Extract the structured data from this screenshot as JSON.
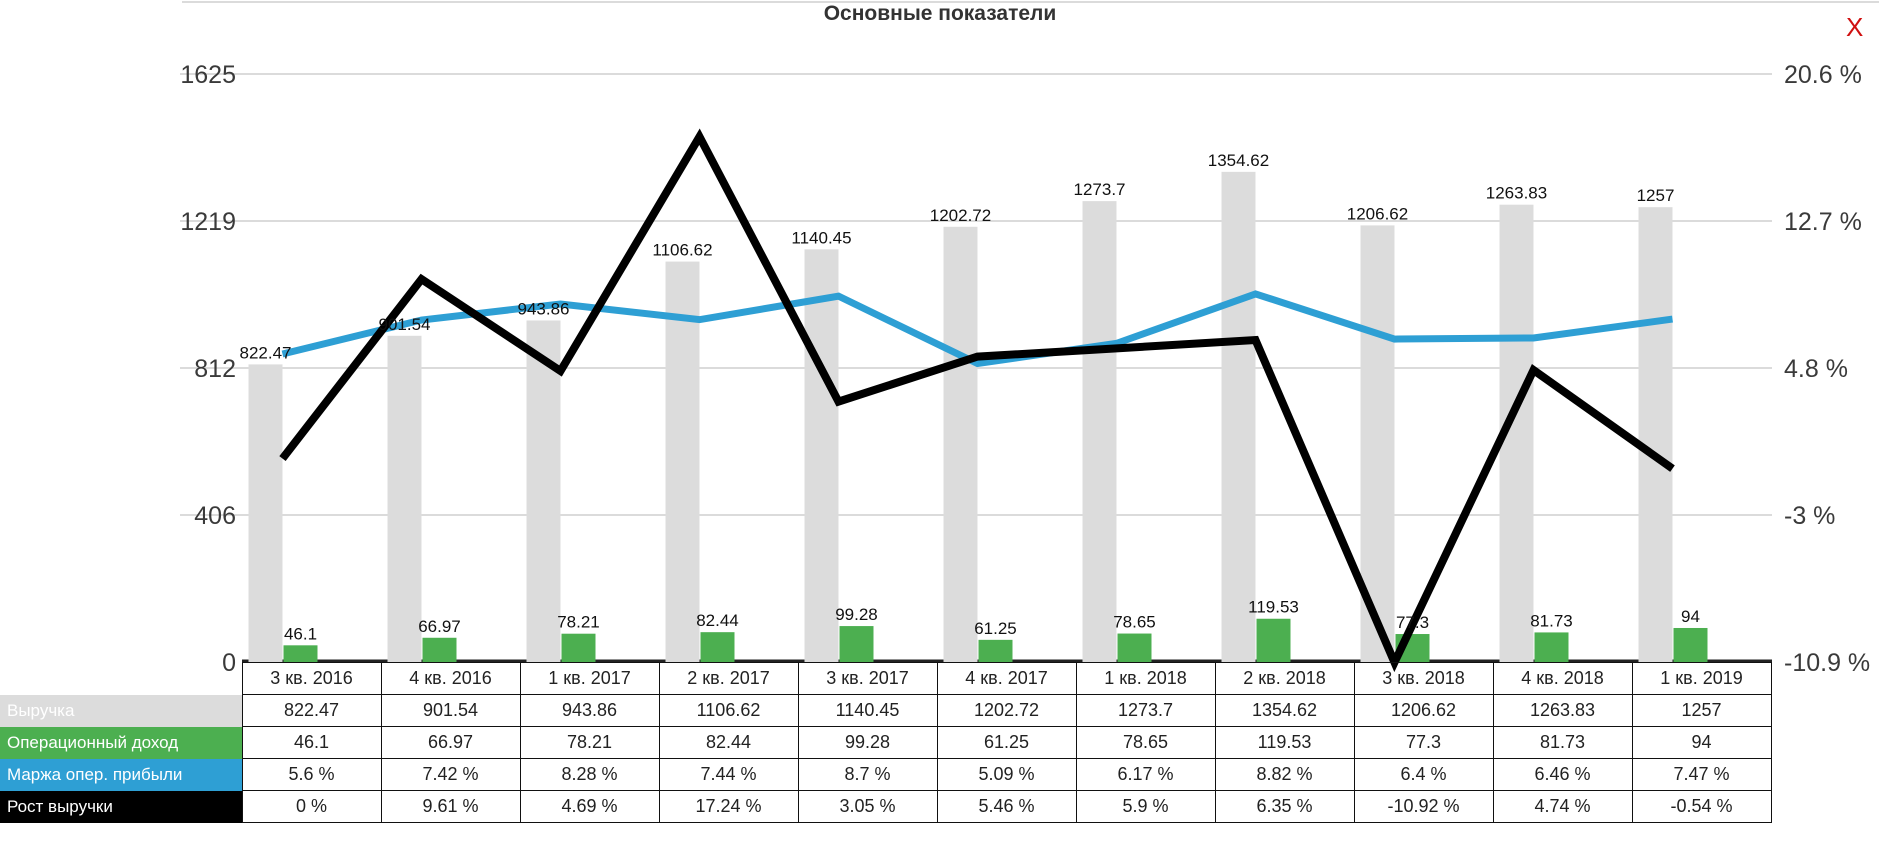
{
  "chart_data": {
    "type": "bar",
    "title": "Основные показатели",
    "categories": [
      "3 кв. 2016",
      "4 кв. 2016",
      "1 кв. 2017",
      "2 кв. 2017",
      "3 кв. 2017",
      "4 кв. 2017",
      "1 кв. 2018",
      "2 кв. 2018",
      "3 кв. 2018",
      "4 кв. 2018",
      "1 кв. 2019"
    ],
    "y_left": {
      "ylim": [
        0,
        1625
      ],
      "ticks": [
        "0",
        "406",
        "812",
        "1219",
        "1625"
      ]
    },
    "y_right": {
      "ylim": [
        -10.9,
        20.6
      ],
      "ticks": [
        "-10.9 %",
        "-3 %",
        "4.8 %",
        "12.7 %",
        "20.6 %"
      ]
    },
    "series": [
      {
        "name": "Выручка",
        "kind": "bar",
        "axis": "left",
        "color": "#dcdcdc",
        "values": [
          822.47,
          901.54,
          943.86,
          1106.62,
          1140.45,
          1202.72,
          1273.7,
          1354.62,
          1206.62,
          1263.83,
          1257
        ],
        "labels": [
          "822.47",
          "901.54",
          "943.86",
          "1106.62",
          "1140.45",
          "1202.72",
          "1273.7",
          "1354.62",
          "1206.62",
          "1263.83",
          "1257"
        ]
      },
      {
        "name": "Операционный доход",
        "kind": "bar",
        "axis": "left",
        "color": "#4caf50",
        "values": [
          46.1,
          66.97,
          78.21,
          82.44,
          99.28,
          61.25,
          78.65,
          119.53,
          77.3,
          81.73,
          94
        ],
        "labels": [
          "46.1",
          "66.97",
          "78.21",
          "82.44",
          "99.28",
          "61.25",
          "78.65",
          "119.53",
          "77.3",
          "81.73",
          "94"
        ]
      },
      {
        "name": "Маржа опер. прибыли",
        "kind": "line",
        "axis": "right",
        "color": "#2e9fd4",
        "values": [
          5.6,
          7.42,
          8.28,
          7.44,
          8.7,
          5.09,
          6.17,
          8.82,
          6.4,
          6.46,
          7.47
        ],
        "labels": [
          "5.6 %",
          "7.42 %",
          "8.28 %",
          "7.44 %",
          "8.7 %",
          "5.09 %",
          "6.17 %",
          "8.82 %",
          "6.4 %",
          "6.46 %",
          "7.47 %"
        ]
      },
      {
        "name": "Рост выручки",
        "kind": "line",
        "axis": "right",
        "color": "#000000",
        "values": [
          0,
          9.61,
          4.69,
          17.24,
          3.05,
          5.46,
          5.9,
          6.35,
          -10.92,
          4.74,
          -0.54
        ],
        "labels": [
          "0 %",
          "9.61 %",
          "4.69 %",
          "17.24 %",
          "3.05 %",
          "5.46 %",
          "5.9 %",
          "6.35 %",
          "-10.92 %",
          "4.74 %",
          "-0.54 %"
        ]
      }
    ],
    "grid": true
  },
  "close_label": "X",
  "colors": {
    "close": "#d01010",
    "grid": "#cfcfcf",
    "axis": "#222222"
  }
}
